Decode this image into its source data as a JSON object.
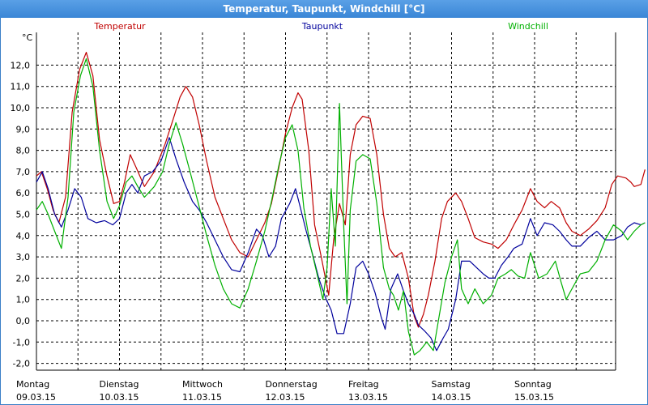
{
  "window": {
    "title": "Temperatur, Taupunkt, Windchill [°C]"
  },
  "chart_data": {
    "type": "line",
    "title": "Temperatur, Taupunkt, Windchill [°C]",
    "ylabel": "°C",
    "ylim": [
      -2.3,
      13.9
    ],
    "xlim": [
      0,
      7.2
    ],
    "yticks": [
      "12,0",
      "11,0",
      "10,0",
      "9,0",
      "8,0",
      "7,0",
      "6,0",
      "5,0",
      "4,0",
      "3,0",
      "2,0",
      "1,0",
      "0,0",
      "-1,0",
      "-2,0"
    ],
    "xticks": [
      {
        "day": "Montag",
        "date": "09.03.15"
      },
      {
        "day": "Dienstag",
        "date": "10.03.15"
      },
      {
        "day": "Mittwoch",
        "date": "11.03.15"
      },
      {
        "day": "Donnerstag",
        "date": "12.03.15"
      },
      {
        "day": "Freitag",
        "date": "13.03.15"
      },
      {
        "day": "Samstag",
        "date": "14.03.15"
      },
      {
        "day": "Sonntag",
        "date": "15.03.15"
      }
    ],
    "grid": true,
    "legend_position": "top",
    "series": [
      {
        "name": "Temperatur",
        "color": "#c00000",
        "points": [
          [
            0,
            6.8
          ],
          [
            0.06,
            7.0
          ],
          [
            0.13,
            6.2
          ],
          [
            0.2,
            5.2
          ],
          [
            0.27,
            4.6
          ],
          [
            0.35,
            5.8
          ],
          [
            0.43,
            9.8
          ],
          [
            0.52,
            11.8
          ],
          [
            0.6,
            12.6
          ],
          [
            0.68,
            11.5
          ],
          [
            0.76,
            8.5
          ],
          [
            0.85,
            6.8
          ],
          [
            0.93,
            5.5
          ],
          [
            1.0,
            5.6
          ],
          [
            1.06,
            6.5
          ],
          [
            1.13,
            7.8
          ],
          [
            1.2,
            7.2
          ],
          [
            1.3,
            6.3
          ],
          [
            1.42,
            7.0
          ],
          [
            1.55,
            8.3
          ],
          [
            1.65,
            9.5
          ],
          [
            1.73,
            10.5
          ],
          [
            1.8,
            11.0
          ],
          [
            1.88,
            10.5
          ],
          [
            1.96,
            9.2
          ],
          [
            2.05,
            7.5
          ],
          [
            2.15,
            5.8
          ],
          [
            2.25,
            4.8
          ],
          [
            2.35,
            3.8
          ],
          [
            2.45,
            3.2
          ],
          [
            2.55,
            3.0
          ],
          [
            2.65,
            3.8
          ],
          [
            2.75,
            4.6
          ],
          [
            2.83,
            5.5
          ],
          [
            2.92,
            7.2
          ],
          [
            3.0,
            8.8
          ],
          [
            3.08,
            10.0
          ],
          [
            3.15,
            10.7
          ],
          [
            3.2,
            10.4
          ],
          [
            3.28,
            8.0
          ],
          [
            3.35,
            4.5
          ],
          [
            3.43,
            3.0
          ],
          [
            3.52,
            1.2
          ],
          [
            3.58,
            3.8
          ],
          [
            3.65,
            5.5
          ],
          [
            3.72,
            4.5
          ],
          [
            3.78,
            7.8
          ],
          [
            3.85,
            9.2
          ],
          [
            3.93,
            9.6
          ],
          [
            4.02,
            9.5
          ],
          [
            4.1,
            7.8
          ],
          [
            4.18,
            5.0
          ],
          [
            4.25,
            3.4
          ],
          [
            4.32,
            3.0
          ],
          [
            4.4,
            3.2
          ],
          [
            4.48,
            2.0
          ],
          [
            4.55,
            0.2
          ],
          [
            4.6,
            -0.3
          ],
          [
            4.66,
            0.3
          ],
          [
            4.72,
            1.2
          ],
          [
            4.8,
            2.8
          ],
          [
            4.88,
            4.8
          ],
          [
            4.95,
            5.6
          ],
          [
            5.05,
            6.0
          ],
          [
            5.12,
            5.6
          ],
          [
            5.2,
            4.8
          ],
          [
            5.28,
            3.9
          ],
          [
            5.38,
            3.7
          ],
          [
            5.48,
            3.6
          ],
          [
            5.56,
            3.4
          ],
          [
            5.66,
            3.8
          ],
          [
            5.75,
            4.5
          ],
          [
            5.85,
            5.2
          ],
          [
            5.95,
            6.2
          ],
          [
            6.03,
            5.6
          ],
          [
            6.12,
            5.3
          ],
          [
            6.2,
            5.6
          ],
          [
            6.3,
            5.3
          ],
          [
            6.38,
            4.6
          ],
          [
            6.45,
            4.2
          ],
          [
            6.55,
            4.0
          ],
          [
            6.65,
            4.3
          ],
          [
            6.75,
            4.7
          ],
          [
            6.85,
            5.3
          ],
          [
            6.93,
            6.4
          ],
          [
            7.0,
            6.8
          ],
          [
            7.1,
            6.7
          ],
          [
            7.16,
            6.5
          ],
          [
            7.2,
            6.3
          ],
          [
            7.28,
            6.4
          ],
          [
            7.33,
            7.1
          ]
        ]
      },
      {
        "name": "Taupunkt",
        "color": "#00009c",
        "points": [
          [
            0,
            6.5
          ],
          [
            0.07,
            7.0
          ],
          [
            0.14,
            6.2
          ],
          [
            0.22,
            5.0
          ],
          [
            0.3,
            4.4
          ],
          [
            0.38,
            5.2
          ],
          [
            0.46,
            6.2
          ],
          [
            0.54,
            5.8
          ],
          [
            0.62,
            4.8
          ],
          [
            0.72,
            4.6
          ],
          [
            0.82,
            4.7
          ],
          [
            0.92,
            4.5
          ],
          [
            1.0,
            4.8
          ],
          [
            1.08,
            6.0
          ],
          [
            1.15,
            6.4
          ],
          [
            1.22,
            6.0
          ],
          [
            1.3,
            6.8
          ],
          [
            1.4,
            7.0
          ],
          [
            1.5,
            7.5
          ],
          [
            1.6,
            8.6
          ],
          [
            1.68,
            7.6
          ],
          [
            1.78,
            6.5
          ],
          [
            1.88,
            5.6
          ],
          [
            1.96,
            5.2
          ],
          [
            2.05,
            4.6
          ],
          [
            2.15,
            3.8
          ],
          [
            2.25,
            3.0
          ],
          [
            2.35,
            2.4
          ],
          [
            2.45,
            2.3
          ],
          [
            2.55,
            3.2
          ],
          [
            2.65,
            4.3
          ],
          [
            2.72,
            4.0
          ],
          [
            2.8,
            3.0
          ],
          [
            2.88,
            3.5
          ],
          [
            2.95,
            4.8
          ],
          [
            3.05,
            5.5
          ],
          [
            3.12,
            6.2
          ],
          [
            3.18,
            5.3
          ],
          [
            3.25,
            4.2
          ],
          [
            3.32,
            3.2
          ],
          [
            3.4,
            2.0
          ],
          [
            3.48,
            1.1
          ],
          [
            3.55,
            0.5
          ],
          [
            3.62,
            -0.6
          ],
          [
            3.7,
            -0.6
          ],
          [
            3.78,
            0.8
          ],
          [
            3.85,
            2.5
          ],
          [
            3.93,
            2.8
          ],
          [
            4.0,
            2.2
          ],
          [
            4.08,
            1.3
          ],
          [
            4.15,
            0.2
          ],
          [
            4.2,
            -0.4
          ],
          [
            4.27,
            1.5
          ],
          [
            4.35,
            2.2
          ],
          [
            4.42,
            1.4
          ],
          [
            4.48,
            0.8
          ],
          [
            4.55,
            0.3
          ],
          [
            4.6,
            -0.2
          ],
          [
            4.68,
            -0.5
          ],
          [
            4.75,
            -0.8
          ],
          [
            4.82,
            -1.4
          ],
          [
            4.9,
            -0.8
          ],
          [
            4.96,
            -0.4
          ],
          [
            5.05,
            1.0
          ],
          [
            5.12,
            2.8
          ],
          [
            5.22,
            2.8
          ],
          [
            5.3,
            2.5
          ],
          [
            5.38,
            2.2
          ],
          [
            5.45,
            2.0
          ],
          [
            5.52,
            2.0
          ],
          [
            5.6,
            2.6
          ],
          [
            5.68,
            3.0
          ],
          [
            5.75,
            3.4
          ],
          [
            5.85,
            3.6
          ],
          [
            5.95,
            4.8
          ],
          [
            6.03,
            4.0
          ],
          [
            6.12,
            4.6
          ],
          [
            6.22,
            4.5
          ],
          [
            6.3,
            4.2
          ],
          [
            6.38,
            3.8
          ],
          [
            6.45,
            3.5
          ],
          [
            6.55,
            3.5
          ],
          [
            6.65,
            3.9
          ],
          [
            6.75,
            4.2
          ],
          [
            6.85,
            3.8
          ],
          [
            6.95,
            3.8
          ],
          [
            7.05,
            4.0
          ],
          [
            7.12,
            4.4
          ],
          [
            7.2,
            4.6
          ],
          [
            7.28,
            4.5
          ],
          [
            7.33,
            4.6
          ]
        ]
      },
      {
        "name": "Windchill",
        "color": "#00b000",
        "points": [
          [
            0,
            5.2
          ],
          [
            0.07,
            5.6
          ],
          [
            0.14,
            5.0
          ],
          [
            0.22,
            4.2
          ],
          [
            0.3,
            3.4
          ],
          [
            0.38,
            5.8
          ],
          [
            0.45,
            9.8
          ],
          [
            0.53,
            11.5
          ],
          [
            0.6,
            12.3
          ],
          [
            0.68,
            11.0
          ],
          [
            0.76,
            8.0
          ],
          [
            0.85,
            5.6
          ],
          [
            0.93,
            4.8
          ],
          [
            1.0,
            5.4
          ],
          [
            1.08,
            6.5
          ],
          [
            1.15,
            6.8
          ],
          [
            1.22,
            6.3
          ],
          [
            1.3,
            5.8
          ],
          [
            1.42,
            6.3
          ],
          [
            1.52,
            7.0
          ],
          [
            1.6,
            8.3
          ],
          [
            1.68,
            9.3
          ],
          [
            1.76,
            8.3
          ],
          [
            1.85,
            7.0
          ],
          [
            1.95,
            5.5
          ],
          [
            2.05,
            4.0
          ],
          [
            2.15,
            2.6
          ],
          [
            2.25,
            1.5
          ],
          [
            2.35,
            0.8
          ],
          [
            2.45,
            0.6
          ],
          [
            2.55,
            1.5
          ],
          [
            2.65,
            2.8
          ],
          [
            2.75,
            4.2
          ],
          [
            2.83,
            5.6
          ],
          [
            2.92,
            7.3
          ],
          [
            3.0,
            8.6
          ],
          [
            3.08,
            9.2
          ],
          [
            3.15,
            8.0
          ],
          [
            3.22,
            5.3
          ],
          [
            3.3,
            3.5
          ],
          [
            3.38,
            2.2
          ],
          [
            3.45,
            1.0
          ],
          [
            3.5,
            2.5
          ],
          [
            3.55,
            6.2
          ],
          [
            3.6,
            3.5
          ],
          [
            3.65,
            10.2
          ],
          [
            3.7,
            4.5
          ],
          [
            3.74,
            0.8
          ],
          [
            3.78,
            5.2
          ],
          [
            3.85,
            7.5
          ],
          [
            3.93,
            7.8
          ],
          [
            4.02,
            7.6
          ],
          [
            4.1,
            5.5
          ],
          [
            4.18,
            2.5
          ],
          [
            4.25,
            1.5
          ],
          [
            4.3,
            1.2
          ],
          [
            4.36,
            0.5
          ],
          [
            4.42,
            1.4
          ],
          [
            4.48,
            -0.5
          ],
          [
            4.55,
            -1.6
          ],
          [
            4.62,
            -1.4
          ],
          [
            4.7,
            -1.0
          ],
          [
            4.78,
            -1.4
          ],
          [
            4.85,
            0.2
          ],
          [
            4.92,
            1.8
          ],
          [
            5.0,
            3.0
          ],
          [
            5.07,
            3.8
          ],
          [
            5.12,
            1.5
          ],
          [
            5.2,
            0.8
          ],
          [
            5.28,
            1.5
          ],
          [
            5.38,
            0.8
          ],
          [
            5.48,
            1.2
          ],
          [
            5.56,
            2.0
          ],
          [
            5.65,
            2.2
          ],
          [
            5.72,
            2.4
          ],
          [
            5.8,
            2.1
          ],
          [
            5.88,
            2.0
          ],
          [
            5.95,
            3.2
          ],
          [
            6.05,
            2.0
          ],
          [
            6.15,
            2.2
          ],
          [
            6.25,
            2.8
          ],
          [
            6.32,
            1.8
          ],
          [
            6.38,
            1.0
          ],
          [
            6.45,
            1.5
          ],
          [
            6.55,
            2.2
          ],
          [
            6.65,
            2.3
          ],
          [
            6.75,
            2.8
          ],
          [
            6.85,
            3.8
          ],
          [
            6.95,
            4.5
          ],
          [
            7.05,
            4.2
          ],
          [
            7.12,
            3.8
          ],
          [
            7.2,
            4.2
          ],
          [
            7.28,
            4.5
          ],
          [
            7.33,
            4.6
          ]
        ]
      }
    ]
  }
}
